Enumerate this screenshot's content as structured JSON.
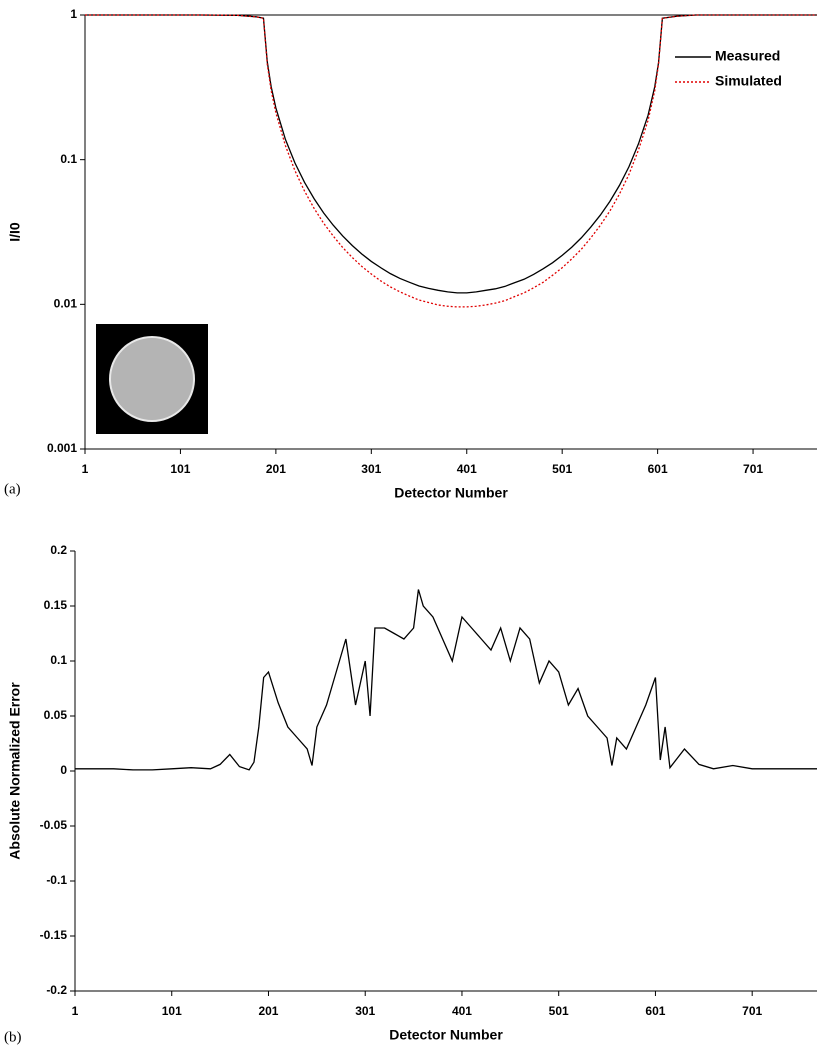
{
  "chart_data": [
    {
      "type": "line",
      "panel_label": "(a)",
      "xlabel": "Detector Number",
      "ylabel": "I/I0",
      "ylog": true,
      "ylim": [
        0.001,
        1
      ],
      "yticks": [
        0.001,
        0.01,
        0.1,
        1
      ],
      "xlim": [
        1,
        768
      ],
      "xticks": [
        1,
        101,
        201,
        301,
        401,
        501,
        601,
        701
      ],
      "legend": "upper right",
      "x": [
        1,
        41,
        81,
        121,
        161,
        181,
        188,
        192,
        196,
        201,
        211,
        221,
        231,
        241,
        251,
        261,
        271,
        281,
        291,
        301,
        311,
        321,
        331,
        341,
        351,
        361,
        371,
        381,
        391,
        401,
        411,
        421,
        431,
        441,
        451,
        461,
        471,
        481,
        491,
        501,
        511,
        521,
        531,
        541,
        551,
        561,
        571,
        581,
        591,
        598,
        602,
        606,
        621,
        641,
        681,
        721,
        768
      ],
      "series": [
        {
          "name": "Measured",
          "color": "#000000",
          "style": "solid",
          "values": [
            1,
            1,
            1,
            1,
            0.995,
            0.97,
            0.95,
            0.474,
            0.321,
            0.228,
            0.138,
            0.0948,
            0.0697,
            0.0538,
            0.0429,
            0.0353,
            0.0297,
            0.0255,
            0.0223,
            0.0198,
            0.0179,
            0.0163,
            0.0151,
            0.0142,
            0.0134,
            0.0129,
            0.0125,
            0.0122,
            0.012,
            0.012,
            0.0122,
            0.0125,
            0.0128,
            0.0133,
            0.0141,
            0.0149,
            0.0161,
            0.0176,
            0.0194,
            0.0218,
            0.0248,
            0.0288,
            0.0342,
            0.0414,
            0.0515,
            0.0664,
            0.0895,
            0.129,
            0.203,
            0.32,
            0.47,
            0.95,
            0.98,
            1,
            1,
            1,
            1
          ]
        },
        {
          "name": "Simulated",
          "color": "#e00000",
          "style": "dotted",
          "values": [
            1,
            1,
            1,
            1,
            0.995,
            0.97,
            0.95,
            0.456,
            0.302,
            0.211,
            0.125,
            0.0839,
            0.0607,
            0.0461,
            0.0364,
            0.0297,
            0.0247,
            0.0211,
            0.0183,
            0.0162,
            0.0145,
            0.0132,
            0.0122,
            0.0114,
            0.0107,
            0.0103,
            0.0099,
            0.0097,
            0.0096,
            0.0096,
            0.0097,
            0.0099,
            0.0102,
            0.0106,
            0.0113,
            0.012,
            0.013,
            0.0142,
            0.0159,
            0.0179,
            0.0206,
            0.024,
            0.0288,
            0.0352,
            0.0442,
            0.0578,
            0.0792,
            0.117,
            0.187,
            0.3,
            0.46,
            0.95,
            0.98,
            1,
            1,
            1,
            1
          ]
        }
      ]
    },
    {
      "type": "line",
      "panel_label": "(b)",
      "xlabel": "Detector Number",
      "ylabel": "Absolute Normalized Error",
      "ylog": false,
      "ylim": [
        -0.2,
        0.2
      ],
      "yticks": [
        -0.2,
        -0.15,
        -0.1,
        -0.05,
        0,
        0.05,
        0.1,
        0.15,
        0.2
      ],
      "xlim": [
        1,
        768
      ],
      "xticks": [
        1,
        101,
        201,
        301,
        401,
        501,
        601,
        701
      ],
      "x": [
        1,
        21,
        41,
        61,
        81,
        101,
        121,
        141,
        151,
        161,
        171,
        181,
        186,
        191,
        196,
        201,
        211,
        221,
        231,
        241,
        246,
        251,
        261,
        271,
        281,
        291,
        301,
        306,
        311,
        321,
        331,
        341,
        351,
        356,
        361,
        371,
        381,
        391,
        401,
        411,
        421,
        431,
        441,
        451,
        461,
        471,
        481,
        491,
        501,
        511,
        521,
        531,
        541,
        551,
        556,
        561,
        571,
        581,
        591,
        601,
        606,
        611,
        616,
        631,
        646,
        661,
        681,
        701,
        741,
        768
      ],
      "series": [
        {
          "color": "#000000",
          "style": "solid",
          "values": [
            0.002,
            0.002,
            0.002,
            0.001,
            0.001,
            0.002,
            0.003,
            0.002,
            0.006,
            0.015,
            0.004,
            0.001,
            0.008,
            0.04,
            0.085,
            0.09,
            0.062,
            0.04,
            0.03,
            0.02,
            0.005,
            0.04,
            0.06,
            0.09,
            0.12,
            0.06,
            0.1,
            0.05,
            0.13,
            0.13,
            0.125,
            0.12,
            0.13,
            0.165,
            0.15,
            0.14,
            0.12,
            0.1,
            0.14,
            0.13,
            0.12,
            0.11,
            0.13,
            0.1,
            0.13,
            0.12,
            0.08,
            0.1,
            0.09,
            0.06,
            0.075,
            0.05,
            0.04,
            0.03,
            0.005,
            0.03,
            0.02,
            0.04,
            0.06,
            0.085,
            0.01,
            0.04,
            0.003,
            0.02,
            0.006,
            0.002,
            0.005,
            0.002,
            0.002,
            0.002
          ]
        }
      ]
    }
  ]
}
